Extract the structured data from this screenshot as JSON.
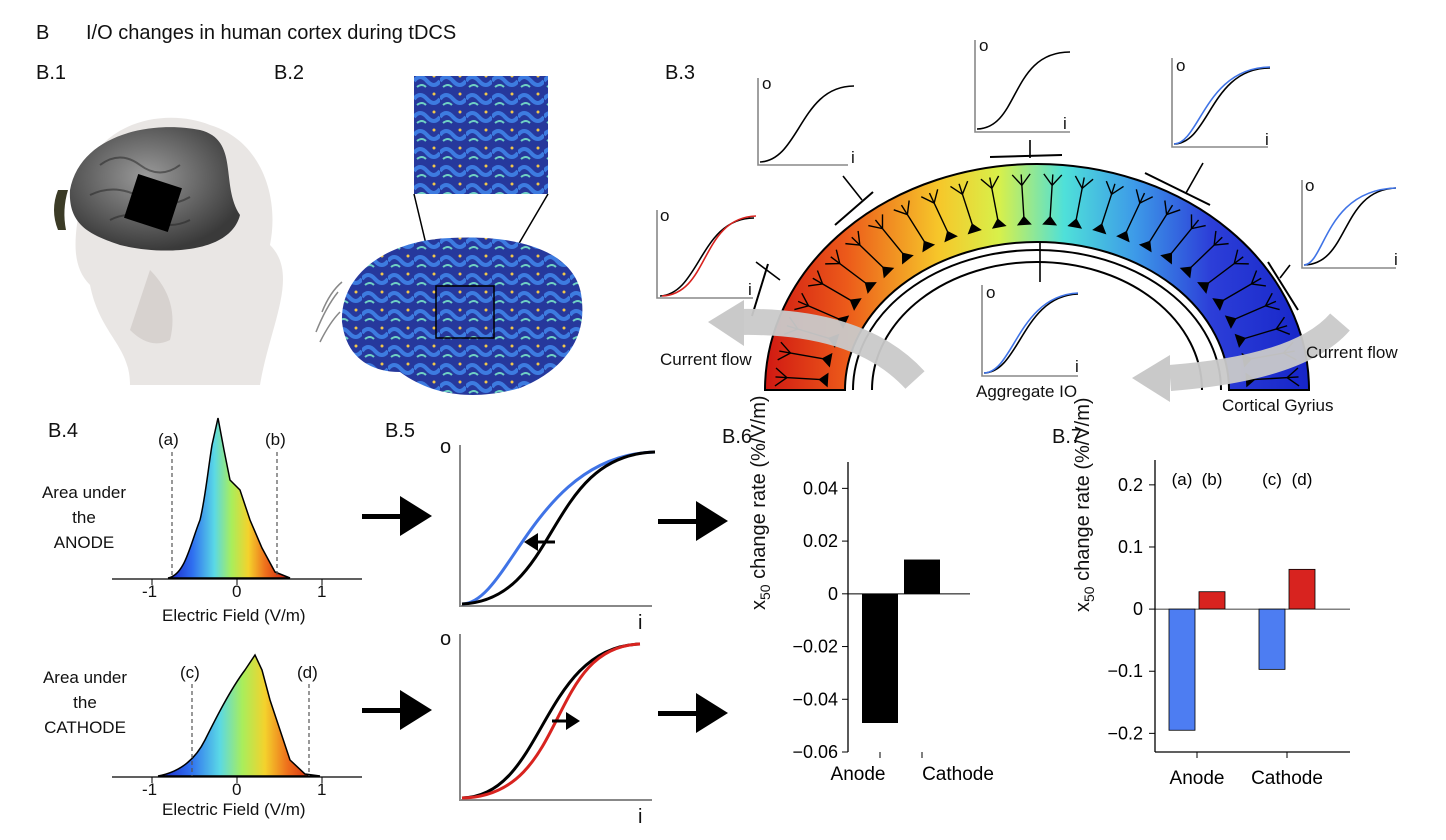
{
  "header": {
    "letter": "B",
    "title": "I/O changes in human cortex during tDCS"
  },
  "panels": {
    "b1": "B.1",
    "b2": "B.2",
    "b3": "B.3",
    "b4": "B.4",
    "b5": "B.5",
    "b6": "B.6",
    "b7": "B.7"
  },
  "b3": {
    "current_flow_left": "Current flow",
    "current_flow_right": "Current flow",
    "aggregate_label": "Aggregate IO",
    "gyrus_label": "Cortical Gyrius",
    "axis_o": "o",
    "axis_i": "i"
  },
  "b4": {
    "anode_label": [
      "Area under",
      "the",
      "ANODE"
    ],
    "cathode_label": [
      "Area under",
      "the",
      "CATHODE"
    ],
    "xlabel": "Electric Field (V/m)",
    "ticks": [
      "-1",
      "0",
      "1"
    ],
    "markers_top": [
      "(a)",
      "(b)"
    ],
    "markers_bottom": [
      "(c)",
      "(d)"
    ]
  },
  "b5": {
    "axis_o": "o",
    "axis_i": "i"
  },
  "colors": {
    "anode_curve": "#3f73e6",
    "cathode_curve": "#d8231f",
    "baseline_curve": "#000000",
    "b7_blue": "#4d7df2",
    "b7_red": "#d8231f"
  },
  "chart_data": [
    {
      "type": "bar",
      "id": "B.6",
      "categories": [
        "Anode",
        "Cathode"
      ],
      "values": [
        -0.049,
        0.013
      ],
      "ylabel": "x50 change rate (%/V/m)",
      "ylim": [
        -0.06,
        0.05
      ],
      "yticks": [
        "0.04",
        "0.02",
        "0",
        "−0.02",
        "−0.04",
        "−0.06"
      ],
      "bar_color": "#000000"
    },
    {
      "type": "bar",
      "id": "B.7",
      "categories": [
        "Anode",
        "Cathode"
      ],
      "series": [
        {
          "values": [
            -0.195,
            -0.097
          ],
          "color": "#4d7df2"
        },
        {
          "values": [
            0.028,
            0.064
          ],
          "color": "#d8231f"
        }
      ],
      "bar_labels": [
        [
          "(a)",
          "(b)"
        ],
        [
          "(c)",
          "(d)"
        ]
      ],
      "ylabel": "x50 change rate (%/V/m)",
      "ylim": [
        -0.23,
        0.24
      ],
      "yticks": [
        "0.2",
        "0.1",
        "0",
        "−0.1",
        "−0.2"
      ]
    }
  ]
}
